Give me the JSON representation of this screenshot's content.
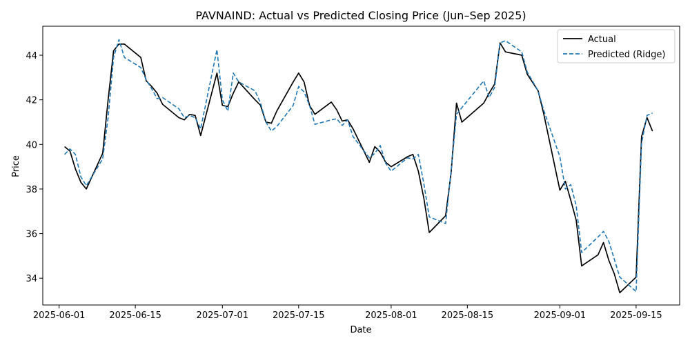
{
  "chart_data": {
    "type": "line",
    "title": "PAVNAIND: Actual vs Predicted Closing Price (Jun–Sep 2025)",
    "xlabel": "Date",
    "ylabel": "Price",
    "xlim": [
      "2025-05-29",
      "2025-09-23"
    ],
    "ylim": [
      32.8,
      45.3
    ],
    "x_ticks": [
      "2025-06-01",
      "2025-06-15",
      "2025-07-01",
      "2025-07-15",
      "2025-08-01",
      "2025-08-15",
      "2025-09-01",
      "2025-09-15"
    ],
    "y_ticks": [
      34,
      36,
      38,
      40,
      42,
      44
    ],
    "grid": false,
    "legend_position": "top-right",
    "x": [
      "2025-06-02",
      "2025-06-03",
      "2025-06-04",
      "2025-06-05",
      "2025-06-06",
      "2025-06-09",
      "2025-06-10",
      "2025-06-11",
      "2025-06-12",
      "2025-06-13",
      "2025-06-16",
      "2025-06-17",
      "2025-06-18",
      "2025-06-19",
      "2025-06-20",
      "2025-06-23",
      "2025-06-24",
      "2025-06-25",
      "2025-06-26",
      "2025-06-27",
      "2025-06-30",
      "2025-07-01",
      "2025-07-02",
      "2025-07-03",
      "2025-07-04",
      "2025-07-07",
      "2025-07-08",
      "2025-07-09",
      "2025-07-10",
      "2025-07-11",
      "2025-07-14",
      "2025-07-15",
      "2025-07-16",
      "2025-07-17",
      "2025-07-18",
      "2025-07-21",
      "2025-07-22",
      "2025-07-23",
      "2025-07-24",
      "2025-07-25",
      "2025-07-28",
      "2025-07-29",
      "2025-07-30",
      "2025-07-31",
      "2025-08-01",
      "2025-08-04",
      "2025-08-05",
      "2025-08-06",
      "2025-08-07",
      "2025-08-08",
      "2025-08-11",
      "2025-08-12",
      "2025-08-13",
      "2025-08-14",
      "2025-08-18",
      "2025-08-19",
      "2025-08-20",
      "2025-08-21",
      "2025-08-22",
      "2025-08-25",
      "2025-08-26",
      "2025-08-28",
      "2025-08-29",
      "2025-09-01",
      "2025-09-02",
      "2025-09-03",
      "2025-09-04",
      "2025-09-05",
      "2025-09-08",
      "2025-09-09",
      "2025-09-10",
      "2025-09-11",
      "2025-09-12",
      "2025-09-15",
      "2025-09-16",
      "2025-09-17",
      "2025-09-18"
    ],
    "series": [
      {
        "name": "Actual",
        "color": "#000000",
        "style": "solid",
        "values": [
          39.9,
          39.7,
          38.9,
          38.3,
          38.0,
          39.6,
          42.0,
          44.2,
          44.5,
          44.5,
          43.9,
          42.85,
          42.6,
          42.3,
          41.8,
          41.2,
          41.1,
          41.35,
          41.3,
          40.4,
          43.2,
          41.75,
          41.7,
          42.3,
          42.8,
          42.0,
          41.75,
          41.0,
          40.95,
          41.5,
          42.8,
          43.2,
          42.8,
          41.75,
          41.35,
          41.9,
          41.55,
          41.05,
          41.1,
          40.7,
          39.2,
          39.9,
          39.65,
          39.2,
          39.0,
          39.45,
          39.55,
          38.8,
          37.6,
          36.05,
          36.8,
          38.7,
          41.85,
          41.0,
          41.85,
          42.3,
          42.7,
          44.55,
          44.15,
          44.0,
          43.15,
          42.4,
          41.4,
          37.95,
          38.35,
          37.5,
          36.6,
          34.55,
          35.05,
          35.6,
          34.8,
          34.2,
          33.35,
          34.05,
          40.35,
          41.2,
          40.6
        ]
      },
      {
        "name": "Predicted (Ridge)",
        "color": "#1f77b4",
        "style": "dashed",
        "values": [
          39.55,
          39.8,
          39.55,
          38.55,
          38.15,
          39.35,
          41.2,
          43.9,
          44.7,
          43.9,
          43.45,
          42.9,
          42.5,
          42.05,
          42.1,
          41.6,
          41.2,
          41.3,
          41.2,
          40.7,
          44.25,
          42.0,
          41.5,
          43.2,
          42.8,
          42.4,
          41.85,
          41.0,
          40.6,
          40.8,
          41.75,
          42.6,
          42.35,
          41.75,
          40.9,
          41.1,
          41.15,
          40.85,
          41.1,
          40.35,
          39.4,
          39.6,
          39.95,
          39.15,
          38.8,
          39.4,
          39.35,
          39.55,
          38.25,
          36.75,
          36.45,
          38.8,
          41.35,
          41.65,
          42.85,
          42.1,
          42.55,
          44.55,
          44.65,
          44.15,
          43.25,
          42.4,
          41.55,
          39.45,
          38.0,
          38.2,
          37.25,
          35.15,
          35.85,
          36.1,
          35.65,
          34.85,
          34.05,
          33.4,
          40.05,
          41.3,
          41.4
        ]
      }
    ]
  }
}
